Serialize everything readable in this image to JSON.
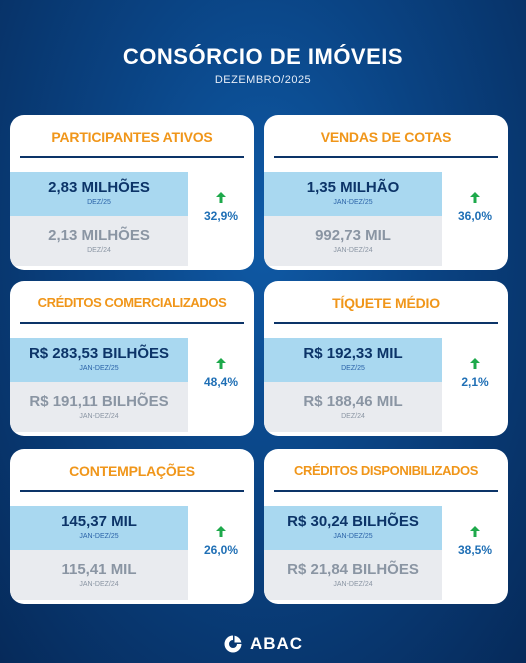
{
  "header": {
    "title": "CONSÓRCIO DE IMÓVEIS",
    "subtitle": "DEZEMBRO/2025"
  },
  "cards": [
    {
      "title": "PARTICIPANTES ATIVOS",
      "current_value": "2,83 MILHÕES",
      "current_period": "DEZ/25",
      "previous_value": "2,13 MILHÕES",
      "previous_period": "DEZ/24",
      "growth": "32,9%"
    },
    {
      "title": "VENDAS DE COTAS",
      "current_value": "1,35 MILHÃO",
      "current_period": "JAN-DEZ/25",
      "previous_value": "992,73 MIL",
      "previous_period": "JAN-DEZ/24",
      "growth": "36,0%"
    },
    {
      "title": "CRÉDITOS COMERCIALIZADOS",
      "current_value": "R$ 283,53 BILHÕES",
      "current_period": "JAN-DEZ/25",
      "previous_value": "R$ 191,11 BILHÕES",
      "previous_period": "JAN-DEZ/24",
      "growth": "48,4%"
    },
    {
      "title": "TÍQUETE MÉDIO",
      "current_value": "R$ 192,33 MIL",
      "current_period": "DEZ/25",
      "previous_value": "R$ 188,46 MIL",
      "previous_period": "DEZ/24",
      "growth": "2,1%"
    },
    {
      "title": "CONTEMPLAÇÕES",
      "current_value": "145,37 MIL",
      "current_period": "JAN-DEZ/25",
      "previous_value": "115,41 MIL",
      "previous_period": "JAN-DEZ/24",
      "growth": "26,0%"
    },
    {
      "title": "CRÉDITOS DISPONIBILIZADOS",
      "current_value": "R$ 30,24 BILHÕES",
      "current_period": "JAN-DEZ/25",
      "previous_value": "R$ 21,84 BILHÕES",
      "previous_period": "JAN-DEZ/24",
      "growth": "38,5%"
    }
  ],
  "footer": {
    "logo_text": "ABAC",
    "logo_icon": "abac-logo-icon"
  },
  "colors": {
    "title_orange": "#f0961a",
    "navy": "#0c3468",
    "current_bg": "#a9d8f0",
    "previous_bg": "#e9ebef",
    "arrow_green": "#1ea94b",
    "growth_blue": "#1f6fb5"
  }
}
